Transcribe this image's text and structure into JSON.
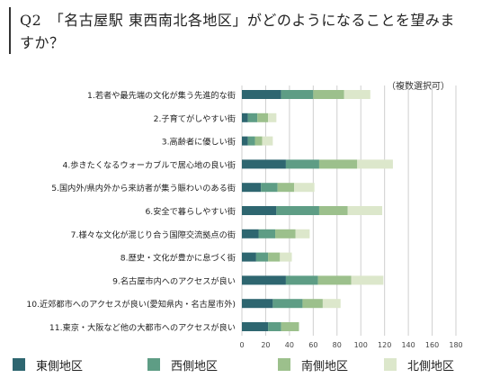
{
  "title": "Q2　「名古屋駅 東西南北各地区」がどのようになることを望みますか？",
  "note": "（複数選択可）",
  "colors": [
    "#2e6670",
    "#5e9d85",
    "#9cc08c",
    "#dce7cb"
  ],
  "chart_data": {
    "type": "bar",
    "orientation": "horizontal",
    "stacked": true,
    "categories": [
      "1.若者や最先端の文化が集う先進的な街",
      "2.子育てがしやすい街",
      "3.高齢者に優しい街",
      "4.歩きたくなるウォーカブルで居心地の良い街",
      "5.国内外/県内外から来訪者が集う賑わいのある街",
      "6.安全で暮らしやすい街",
      "7.様々な文化が混じり合う国際交流拠点の街",
      "8.歴史・文化が豊かに息づく街",
      "9.名古屋市内へのアクセスが良い",
      "10.近郊都市へのアクセスが良い(愛知県内・名古屋市外)",
      "11.東京・大阪など他の大都市へのアクセスが良い"
    ],
    "series": [
      {
        "name": "東側地区",
        "values": [
          33,
          5,
          5,
          37,
          16,
          29,
          14,
          12,
          37,
          26,
          22
        ]
      },
      {
        "name": "西側地区",
        "values": [
          27,
          8,
          6,
          28,
          14,
          36,
          14,
          10,
          27,
          25,
          11
        ]
      },
      {
        "name": "南側地区",
        "values": [
          26,
          9,
          6,
          32,
          14,
          24,
          17,
          10,
          28,
          17,
          15
        ]
      },
      {
        "name": "北側地区",
        "values": [
          22,
          7,
          9,
          30,
          17,
          29,
          12,
          10,
          27,
          15,
          0
        ]
      }
    ],
    "xlim": [
      0,
      180
    ],
    "xticks": [
      0,
      20,
      40,
      60,
      80,
      100,
      120,
      140,
      160,
      180
    ],
    "grid": true,
    "legend_position": "bottom"
  }
}
